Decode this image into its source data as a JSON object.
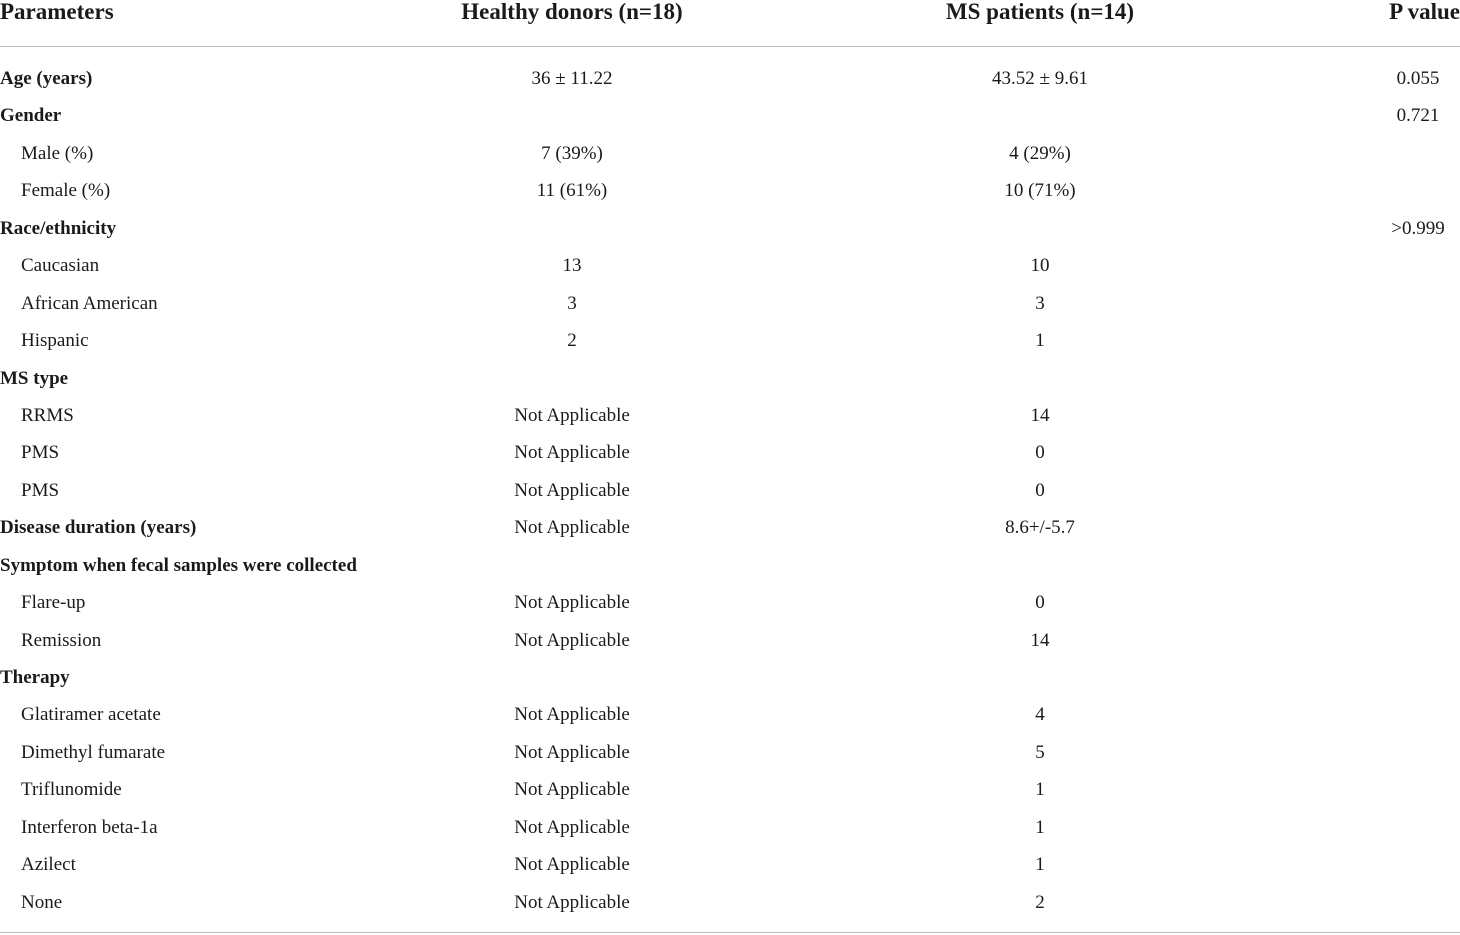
{
  "table": {
    "headers": {
      "parameters": "Parameters",
      "healthy": "Healthy donors (n=18)",
      "ms": "MS patients (n=14)",
      "p": "P value"
    },
    "rows": [
      {
        "param": "Age (years)",
        "healthy": "36 ± 11.22",
        "ms": "43.52 ± 9.61",
        "p": "0.055",
        "level": "category"
      },
      {
        "param": "Gender",
        "healthy": "",
        "ms": "",
        "p": "0.721",
        "level": "category"
      },
      {
        "param": "Male (%)",
        "healthy": "7 (39%)",
        "ms": "4 (29%)",
        "p": "",
        "level": "sub"
      },
      {
        "param": "Female (%)",
        "healthy": "11 (61%)",
        "ms": "10 (71%)",
        "p": "",
        "level": "sub"
      },
      {
        "param": "Race/ethnicity",
        "healthy": "",
        "ms": "",
        "p": ">0.999",
        "level": "category"
      },
      {
        "param": "Caucasian",
        "healthy": "13",
        "ms": "10",
        "p": "",
        "level": "sub"
      },
      {
        "param": "African American",
        "healthy": "3",
        "ms": "3",
        "p": "",
        "level": "sub"
      },
      {
        "param": "Hispanic",
        "healthy": "2",
        "ms": "1",
        "p": "",
        "level": "sub"
      },
      {
        "param": "MS type",
        "healthy": "",
        "ms": "",
        "p": "",
        "level": "category"
      },
      {
        "param": "RRMS",
        "healthy": "Not Applicable",
        "ms": "14",
        "p": "",
        "level": "sub"
      },
      {
        "param": "PMS",
        "healthy": "Not Applicable",
        "ms": "0",
        "p": "",
        "level": "sub"
      },
      {
        "param": "PMS",
        "healthy": "Not Applicable",
        "ms": "0",
        "p": "",
        "level": "sub"
      },
      {
        "param": "Disease duration (years)",
        "healthy": "Not Applicable",
        "ms": "8.6+/-5.7",
        "p": "",
        "level": "category"
      },
      {
        "param": "Symptom when fecal samples were collected",
        "healthy": "",
        "ms": "",
        "p": "",
        "level": "category"
      },
      {
        "param": "Flare-up",
        "healthy": "Not Applicable",
        "ms": "0",
        "p": "",
        "level": "sub"
      },
      {
        "param": "Remission",
        "healthy": "Not Applicable",
        "ms": "14",
        "p": "",
        "level": "sub"
      },
      {
        "param": "Therapy",
        "healthy": "",
        "ms": "",
        "p": "",
        "level": "category"
      },
      {
        "param": "Glatiramer acetate",
        "healthy": "Not Applicable",
        "ms": "4",
        "p": "",
        "level": "sub"
      },
      {
        "param": "Dimethyl fumarate",
        "healthy": "Not Applicable",
        "ms": "5",
        "p": "",
        "level": "sub"
      },
      {
        "param": "Triflunomide",
        "healthy": "Not Applicable",
        "ms": "1",
        "p": "",
        "level": "sub"
      },
      {
        "param": "Interferon beta-1a",
        "healthy": "Not Applicable",
        "ms": "1",
        "p": "",
        "level": "sub"
      },
      {
        "param": "Azilect",
        "healthy": "Not Applicable",
        "ms": "1",
        "p": "",
        "level": "sub"
      },
      {
        "param": "None",
        "healthy": "Not Applicable",
        "ms": "2",
        "p": "",
        "level": "sub"
      }
    ]
  }
}
